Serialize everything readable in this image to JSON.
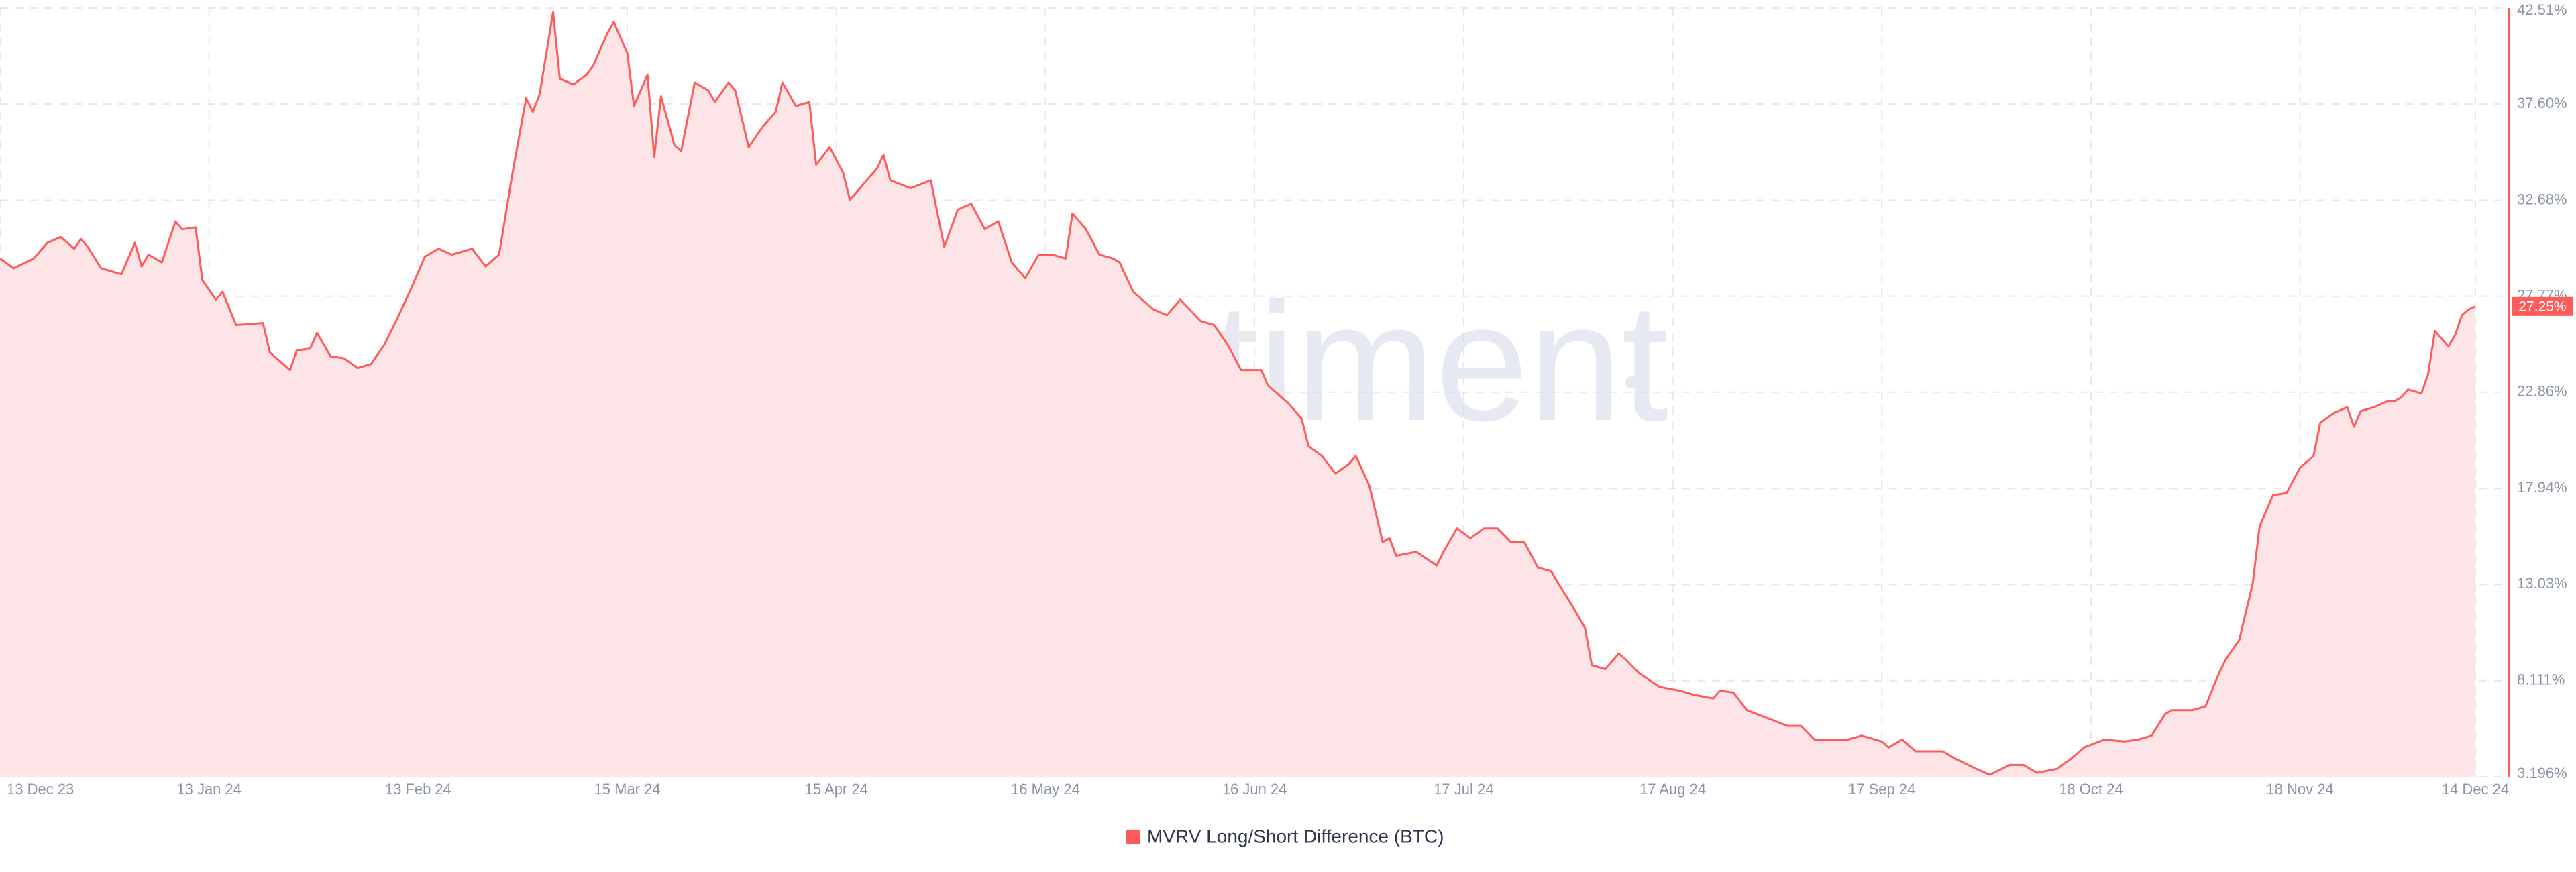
{
  "chart_data": {
    "type": "area",
    "watermark": "santiment",
    "current_value_label": "27.25%",
    "grid": true,
    "xlim": [
      "2023-12-13",
      "2024-12-14"
    ],
    "xticks": [
      {
        "value": "2023-12-13",
        "label": "13 Dec 23"
      },
      {
        "value": "2024-01-13",
        "label": "13 Jan 24"
      },
      {
        "value": "2024-02-13",
        "label": "13 Feb 24"
      },
      {
        "value": "2024-03-15",
        "label": "15 Mar 24"
      },
      {
        "value": "2024-04-15",
        "label": "15 Apr 24"
      },
      {
        "value": "2024-05-16",
        "label": "16 May 24"
      },
      {
        "value": "2024-06-16",
        "label": "16 Jun 24"
      },
      {
        "value": "2024-07-17",
        "label": "17 Jul 24"
      },
      {
        "value": "2024-08-17",
        "label": "17 Aug 24"
      },
      {
        "value": "2024-09-17",
        "label": "17 Sep 24"
      },
      {
        "value": "2024-10-18",
        "label": "18 Oct 24"
      },
      {
        "value": "2024-11-18",
        "label": "18 Nov 24"
      },
      {
        "value": "2024-12-14",
        "label": "14 Dec 24"
      }
    ],
    "ylim": [
      3.196,
      42.51
    ],
    "yticks": [
      {
        "value": 3.196,
        "label": "3.196%"
      },
      {
        "value": 8.111,
        "label": "8.111%"
      },
      {
        "value": 13.03,
        "label": "13.03%"
      },
      {
        "value": 17.94,
        "label": "17.94%"
      },
      {
        "value": 22.86,
        "label": "22.86%"
      },
      {
        "value": 27.77,
        "label": "27.77%"
      },
      {
        "value": 32.68,
        "label": "32.68%"
      },
      {
        "value": 37.6,
        "label": "37.60%"
      },
      {
        "value": 42.51,
        "label": "42.51%"
      }
    ],
    "x": [
      "2023-12-13",
      "2023-12-15",
      "2023-12-18",
      "2023-12-20",
      "2023-12-22",
      "2023-12-24",
      "2023-12-25",
      "2023-12-26",
      "2023-12-28",
      "2023-12-31",
      "2024-01-02",
      "2024-01-03",
      "2024-01-04",
      "2024-01-06",
      "2024-01-08",
      "2024-01-09",
      "2024-01-11",
      "2024-01-12",
      "2024-01-14",
      "2024-01-15",
      "2024-01-17",
      "2024-01-21",
      "2024-01-22",
      "2024-01-25",
      "2024-01-26",
      "2024-01-28",
      "2024-01-29",
      "2024-01-31",
      "2024-02-02",
      "2024-02-04",
      "2024-02-06",
      "2024-02-08",
      "2024-02-10",
      "2024-02-12",
      "2024-02-14",
      "2024-02-16",
      "2024-02-18",
      "2024-02-21",
      "2024-02-23",
      "2024-02-25",
      "2024-02-27",
      "2024-02-29",
      "2024-03-01",
      "2024-03-02",
      "2024-03-04",
      "2024-03-05",
      "2024-03-07",
      "2024-03-09",
      "2024-03-10",
      "2024-03-12",
      "2024-03-13",
      "2024-03-15",
      "2024-03-16",
      "2024-03-18",
      "2024-03-19",
      "2024-03-20",
      "2024-03-22",
      "2024-03-23",
      "2024-03-25",
      "2024-03-27",
      "2024-03-28",
      "2024-03-30",
      "2024-03-31",
      "2024-04-02",
      "2024-04-04",
      "2024-04-06",
      "2024-04-07",
      "2024-04-09",
      "2024-04-11",
      "2024-04-12",
      "2024-04-14",
      "2024-04-16",
      "2024-04-17",
      "2024-04-19",
      "2024-04-21",
      "2024-04-22",
      "2024-04-23",
      "2024-04-26",
      "2024-04-29",
      "2024-05-01",
      "2024-05-03",
      "2024-05-05",
      "2024-05-07",
      "2024-05-09",
      "2024-05-11",
      "2024-05-13",
      "2024-05-15",
      "2024-05-17",
      "2024-05-19",
      "2024-05-20",
      "2024-05-22",
      "2024-05-24",
      "2024-05-26",
      "2024-05-27",
      "2024-05-29",
      "2024-06-01",
      "2024-06-03",
      "2024-06-05",
      "2024-06-08",
      "2024-06-10",
      "2024-06-12",
      "2024-06-14",
      "2024-06-17",
      "2024-06-18",
      "2024-06-21",
      "2024-06-23",
      "2024-06-24",
      "2024-06-26",
      "2024-06-28",
      "2024-06-30",
      "2024-07-01",
      "2024-07-03",
      "2024-07-05",
      "2024-07-06",
      "2024-07-07",
      "2024-07-10",
      "2024-07-13",
      "2024-07-14",
      "2024-07-16",
      "2024-07-18",
      "2024-07-20",
      "2024-07-22",
      "2024-07-24",
      "2024-07-26",
      "2024-07-28",
      "2024-07-30",
      "2024-07-31",
      "2024-08-02",
      "2024-08-04",
      "2024-08-05",
      "2024-08-07",
      "2024-08-09",
      "2024-08-10",
      "2024-08-12",
      "2024-08-15",
      "2024-08-18",
      "2024-08-20",
      "2024-08-23",
      "2024-08-24",
      "2024-08-26",
      "2024-08-28",
      "2024-08-31",
      "2024-09-03",
      "2024-09-05",
      "2024-09-07",
      "2024-09-10",
      "2024-09-12",
      "2024-09-14",
      "2024-09-17",
      "2024-09-18",
      "2024-09-20",
      "2024-09-22",
      "2024-09-26",
      "2024-09-28",
      "2024-10-01",
      "2024-10-03",
      "2024-10-06",
      "2024-10-08",
      "2024-10-10",
      "2024-10-13",
      "2024-10-15",
      "2024-10-17",
      "2024-10-20",
      "2024-10-23",
      "2024-10-25",
      "2024-10-27",
      "2024-10-29",
      "2024-10-30",
      "2024-11-02",
      "2024-11-04",
      "2024-11-06",
      "2024-11-07",
      "2024-11-09",
      "2024-11-11",
      "2024-11-12",
      "2024-11-14",
      "2024-11-16",
      "2024-11-18",
      "2024-11-20",
      "2024-11-21",
      "2024-11-23",
      "2024-11-25",
      "2024-11-26",
      "2024-11-27",
      "2024-11-29",
      "2024-12-01",
      "2024-12-02",
      "2024-12-03",
      "2024-12-04",
      "2024-12-06",
      "2024-12-07",
      "2024-12-08",
      "2024-12-10",
      "2024-12-11",
      "2024-12-12",
      "2024-12-13",
      "2024-12-14"
    ],
    "series": [
      {
        "name": "MVRV Long/Short Difference (BTC)",
        "color": "#ff5b5b",
        "fill": "#fde4e7",
        "values": [
          29.7,
          29.2,
          29.7,
          30.5,
          30.8,
          30.2,
          30.7,
          30.3,
          29.2,
          28.9,
          30.5,
          29.3,
          29.9,
          29.5,
          31.6,
          31.2,
          31.3,
          28.6,
          27.6,
          28.0,
          26.3,
          26.4,
          24.9,
          24.0,
          25.0,
          25.1,
          25.9,
          24.7,
          24.6,
          24.1,
          24.3,
          25.3,
          26.7,
          28.2,
          29.8,
          30.2,
          29.9,
          30.2,
          29.3,
          29.9,
          34.1,
          37.9,
          37.2,
          38.1,
          42.3,
          38.9,
          38.6,
          39.1,
          39.6,
          41.2,
          41.8,
          40.2,
          37.5,
          39.1,
          34.9,
          38.0,
          35.5,
          35.2,
          38.7,
          38.3,
          37.7,
          38.7,
          38.3,
          35.4,
          36.4,
          37.2,
          38.7,
          37.5,
          37.7,
          34.5,
          35.4,
          34.1,
          32.7,
          33.5,
          34.3,
          35.0,
          33.7,
          33.3,
          33.7,
          30.3,
          32.2,
          32.5,
          31.2,
          31.6,
          29.5,
          28.7,
          29.9,
          29.9,
          29.7,
          32.0,
          31.2,
          29.9,
          29.7,
          29.5,
          28.0,
          27.1,
          26.8,
          27.6,
          26.5,
          26.3,
          25.3,
          24.0,
          24.0,
          23.2,
          22.3,
          21.5,
          20.1,
          19.6,
          18.7,
          19.2,
          19.6,
          18.1,
          15.2,
          15.4,
          14.5,
          14.7,
          14.0,
          14.7,
          15.9,
          15.4,
          15.9,
          15.9,
          15.2,
          15.2,
          13.9,
          13.7,
          13.1,
          12.0,
          10.8,
          8.9,
          8.7,
          9.5,
          9.2,
          8.5,
          7.8,
          7.6,
          7.4,
          7.2,
          7.6,
          7.5,
          6.6,
          6.2,
          5.8,
          5.8,
          5.1,
          5.1,
          5.1,
          5.3,
          5.0,
          4.7,
          5.1,
          4.5,
          4.5,
          4.1,
          3.6,
          3.3,
          3.8,
          3.8,
          3.4,
          3.6,
          4.1,
          4.7,
          5.1,
          5.0,
          5.1,
          5.3,
          6.4,
          6.6,
          6.6,
          6.8,
          8.5,
          9.2,
          10.2,
          13.1,
          16.0,
          17.6,
          17.7,
          19.0,
          19.6,
          21.3,
          21.8,
          22.1,
          21.1,
          21.9,
          22.1,
          22.4,
          22.4,
          22.6,
          23.0,
          22.8,
          23.8,
          26.0,
          25.2,
          25.8,
          26.8,
          27.1,
          27.25
        ]
      }
    ]
  }
}
